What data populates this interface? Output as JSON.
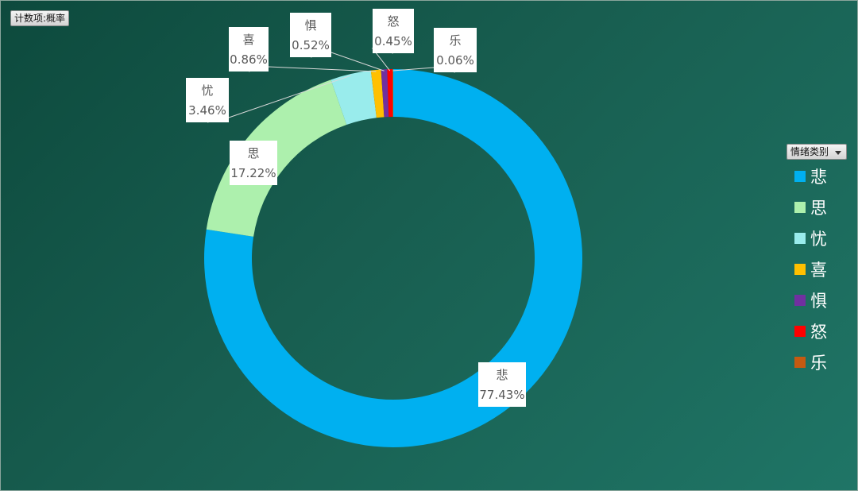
{
  "value_field_button": "计数项:概率",
  "category_field_button": "情绪类别",
  "chart_data": {
    "type": "pie",
    "subtype": "doughnut",
    "categories": [
      "悲",
      "思",
      "忧",
      "喜",
      "惧",
      "怒",
      "乐"
    ],
    "values": [
      77.43,
      17.22,
      3.46,
      0.86,
      0.52,
      0.45,
      0.06
    ],
    "value_labels": [
      "77.43%",
      "17.22%",
      "3.46%",
      "0.86%",
      "0.52%",
      "0.45%",
      "0.06%"
    ],
    "colors": [
      "#00b0f0",
      "#adf0ad",
      "#99ecec",
      "#ffc000",
      "#7030a0",
      "#ff0000",
      "#c55a11"
    ],
    "legend_position": "right"
  }
}
